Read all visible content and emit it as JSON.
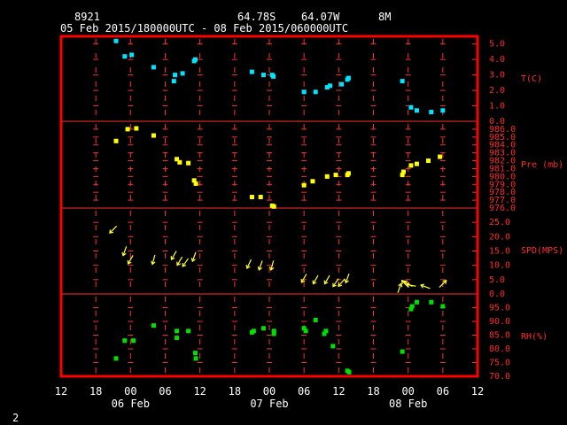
{
  "header": {
    "station": "8921",
    "lat": "64.78S",
    "lon": "64.07W",
    "elev": "8M",
    "period": "05 Feb 2015/180000UTC - 08 Feb 2015/060000UTC"
  },
  "footer_number": "2",
  "colors": {
    "frame": "#ff0000",
    "grid": "#ff3030",
    "temp": "#00e5ff",
    "pres": "#ffff00",
    "wind": "#ffff33",
    "rh": "#00e000",
    "text": "#ffffff"
  },
  "chart_data": {
    "type": "scatter",
    "x_axis": {
      "unit": "hours since 05 Feb 12 UTC",
      "range": [
        0,
        72
      ],
      "tick_hours": [
        0,
        6,
        12,
        18,
        24,
        30,
        36,
        42,
        48,
        54,
        60,
        66,
        72
      ],
      "tick_labels": [
        "12",
        "18",
        "00",
        "06",
        "12",
        "18",
        "00",
        "06",
        "12",
        "18",
        "00",
        "06",
        "12"
      ],
      "day_labels": [
        {
          "hour": 12,
          "text": "06 Feb"
        },
        {
          "hour": 36,
          "text": "07 Feb"
        },
        {
          "hour": 60,
          "text": "08 Feb"
        }
      ]
    },
    "panels": [
      {
        "name": "temperature",
        "label": "T(C)",
        "range": [
          0,
          5.5
        ],
        "ticks": [
          "5.0",
          "4.0",
          "3.0",
          "2.0",
          "1.0",
          "0.0"
        ],
        "tick_values": [
          5,
          4,
          3,
          2,
          1,
          0
        ],
        "points": [
          [
            9.5,
            5.2
          ],
          [
            11,
            4.2
          ],
          [
            12.2,
            4.3
          ],
          [
            16,
            3.5
          ],
          [
            19.5,
            2.6
          ],
          [
            19.7,
            3.0
          ],
          [
            21,
            3.1
          ],
          [
            23,
            3.9
          ],
          [
            23.2,
            4.0
          ],
          [
            33,
            3.2
          ],
          [
            35,
            3.0
          ],
          [
            36.5,
            3.0
          ],
          [
            36.7,
            2.9
          ],
          [
            42,
            1.9
          ],
          [
            44,
            1.9
          ],
          [
            46,
            2.2
          ],
          [
            46.5,
            2.3
          ],
          [
            48.5,
            2.4
          ],
          [
            49.5,
            2.7
          ],
          [
            49.7,
            2.8
          ],
          [
            59,
            2.6
          ],
          [
            60.5,
            0.9
          ],
          [
            61.5,
            0.7
          ],
          [
            64,
            0.6
          ],
          [
            66,
            0.7
          ]
        ]
      },
      {
        "name": "pressure",
        "label": "Pre (mb)",
        "range": [
          976,
          987
        ],
        "ticks": [
          "986.0",
          "985.0",
          "984.0",
          "983.0",
          "982.0",
          "981.0",
          "980.0",
          "979.0",
          "978.0",
          "977.0",
          "976.0"
        ],
        "tick_values": [
          986,
          985,
          984,
          983,
          982,
          981,
          980,
          979,
          978,
          977,
          976
        ],
        "points": [
          [
            9.5,
            984.5
          ],
          [
            11.5,
            986.0
          ],
          [
            13,
            986.1
          ],
          [
            16,
            985.2
          ],
          [
            20,
            982.2
          ],
          [
            20.5,
            981.8
          ],
          [
            22,
            981.7
          ],
          [
            23,
            979.5
          ],
          [
            23.3,
            979.1
          ],
          [
            33,
            977.4
          ],
          [
            34.5,
            977.4
          ],
          [
            36.5,
            976.3
          ],
          [
            36.8,
            976.2
          ],
          [
            42,
            978.9
          ],
          [
            43.5,
            979.4
          ],
          [
            46,
            980.0
          ],
          [
            47.5,
            980.2
          ],
          [
            49.5,
            980.2
          ],
          [
            49.7,
            980.4
          ],
          [
            59,
            980.2
          ],
          [
            59.2,
            980.6
          ],
          [
            60.5,
            981.4
          ],
          [
            61.5,
            981.6
          ],
          [
            63.5,
            982.0
          ],
          [
            65.5,
            982.5
          ]
        ]
      },
      {
        "name": "wind",
        "label": "SPD(MPS)",
        "range": [
          0,
          30
        ],
        "ticks": [
          "25.0",
          "20.0",
          "15.0",
          "10.0",
          "5.0",
          "0.0"
        ],
        "tick_values": [
          25,
          20,
          15,
          10,
          5,
          0
        ],
        "points": [
          [
            9,
            22.5,
            45
          ],
          [
            11,
            15.0,
            20
          ],
          [
            12,
            12.0,
            30
          ],
          [
            16,
            12.0,
            15
          ],
          [
            19.5,
            13.5,
            30
          ],
          [
            20.5,
            11.5,
            30
          ],
          [
            21.5,
            11.0,
            35
          ],
          [
            23,
            13.0,
            20
          ],
          [
            32.5,
            10.5,
            25
          ],
          [
            34.5,
            10.0,
            20
          ],
          [
            36.5,
            10.0,
            15
          ],
          [
            42,
            5.5,
            30
          ],
          [
            44,
            5.0,
            30
          ],
          [
            46,
            5.0,
            30
          ],
          [
            47.5,
            4.0,
            35
          ],
          [
            48.5,
            4.0,
            40
          ],
          [
            49.5,
            5.5,
            20
          ],
          [
            58.5,
            2.0,
            200
          ],
          [
            59.5,
            3.5,
            135
          ],
          [
            60,
            3.5,
            120
          ],
          [
            60.5,
            3.0,
            100
          ],
          [
            63,
            2.5,
            110
          ],
          [
            66,
            3.5,
            225
          ]
        ]
      },
      {
        "name": "relative_humidity",
        "label": "RH(%)",
        "range": [
          70,
          100
        ],
        "ticks": [
          "95.0",
          "90.0",
          "85.0",
          "80.0",
          "75.0",
          "70.0"
        ],
        "tick_values": [
          95,
          90,
          85,
          80,
          75,
          70
        ],
        "points": [
          [
            9.5,
            76.5
          ],
          [
            11,
            83.0
          ],
          [
            12.5,
            83.0
          ],
          [
            16,
            88.5
          ],
          [
            20,
            84.0
          ],
          [
            20,
            86.5
          ],
          [
            22,
            86.5
          ],
          [
            23.2,
            78.5
          ],
          [
            23.3,
            76.5
          ],
          [
            33,
            86.0
          ],
          [
            33.3,
            86.5
          ],
          [
            35,
            87.5
          ],
          [
            36.8,
            85.5
          ],
          [
            36.8,
            86.5
          ],
          [
            42,
            87.5
          ],
          [
            42.3,
            86.5
          ],
          [
            44,
            90.5
          ],
          [
            45.5,
            85.5
          ],
          [
            45.8,
            86.5
          ],
          [
            47,
            81.0
          ],
          [
            49.5,
            72.0
          ],
          [
            49.8,
            71.5
          ],
          [
            59,
            79.0
          ],
          [
            60.5,
            94.5
          ],
          [
            60.7,
            95.5
          ],
          [
            61.5,
            97.0
          ],
          [
            64,
            97.0
          ],
          [
            66,
            95.5
          ]
        ]
      }
    ]
  }
}
